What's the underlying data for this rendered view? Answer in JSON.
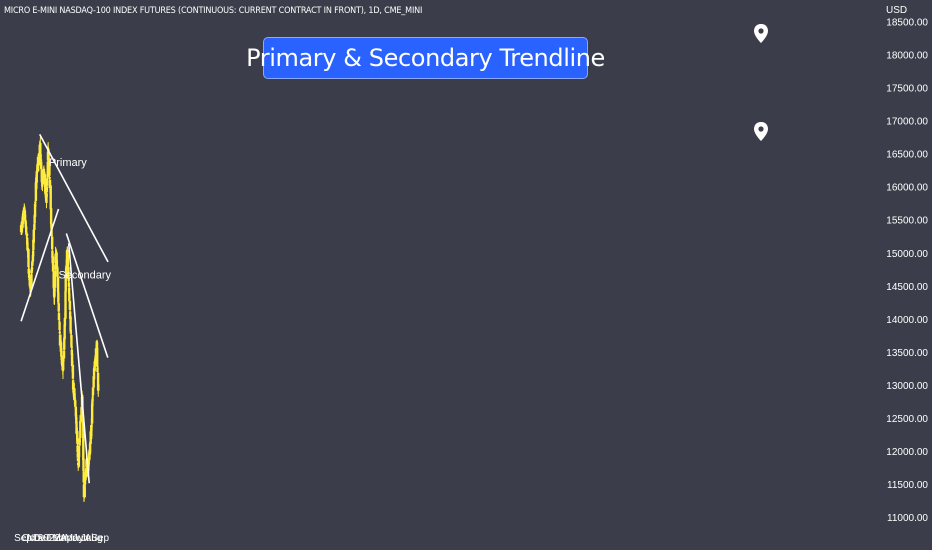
{
  "header": {
    "symbol": "MICRO E-MINI NASDAQ-100 INDEX FUTURES (CONTINUOUS: CURRENT CONTRACT IN FRONT), 1D, CME_MINI",
    "currency": "USD"
  },
  "annotation_title": "Primary & Secondary Trendline",
  "colors": {
    "background": "#3b3e4a",
    "candle": "#ffeb3b",
    "trendline": "#ffffff",
    "label_box": "#2962ff"
  },
  "icons": [
    "location-pin-icon",
    "location-pin-icon"
  ],
  "chart_data": {
    "type": "candlestick",
    "title": "MICRO E-MINI NASDAQ-100 INDEX FUTURES (CONTINUOUS: CURRENT CONTRACT IN FRONT), 1D, CME_MINI",
    "ylabel": "USD",
    "ylim": [
      11000,
      18600
    ],
    "y_ticks": [
      11000,
      11500,
      12000,
      12500,
      13000,
      13500,
      14000,
      14500,
      15000,
      15500,
      16000,
      16500,
      17000,
      17500,
      18000,
      18500
    ],
    "x_ticks": [
      "Sep",
      "Oct",
      "Nov",
      "Dec",
      "2022",
      "Feb",
      "Mar",
      "Apr",
      "May",
      "Jun",
      "Jul",
      "Aug",
      "Sep"
    ],
    "x_range": [
      "2021-08-23",
      "2022-10-10"
    ],
    "close_path": [
      [
        "2021-08-23",
        15350
      ],
      [
        "2021-09-07",
        15650
      ],
      [
        "2021-09-20",
        15200
      ],
      [
        "2021-10-04",
        14450
      ],
      [
        "2021-10-11",
        14650
      ],
      [
        "2021-10-18",
        15000
      ],
      [
        "2021-11-01",
        16000
      ],
      [
        "2021-11-08",
        16300
      ],
      [
        "2021-11-19",
        16600
      ],
      [
        "2021-12-01",
        16050
      ],
      [
        "2021-12-10",
        16250
      ],
      [
        "2021-12-20",
        15750
      ],
      [
        "2021-12-28",
        16550
      ],
      [
        "2022-01-04",
        16250
      ],
      [
        "2022-01-13",
        15400
      ],
      [
        "2022-01-27",
        14300
      ],
      [
        "2022-02-02",
        15000
      ],
      [
        "2022-02-09",
        14800
      ],
      [
        "2022-02-23",
        13650
      ],
      [
        "2022-03-08",
        13250
      ],
      [
        "2022-03-14",
        13500
      ],
      [
        "2022-03-22",
        14600
      ],
      [
        "2022-03-29",
        15050
      ],
      [
        "2022-04-07",
        14400
      ],
      [
        "2022-04-26",
        13000
      ],
      [
        "2022-05-09",
        12550
      ],
      [
        "2022-05-20",
        11800
      ],
      [
        "2022-05-31",
        12500
      ],
      [
        "2022-06-08",
        12800
      ],
      [
        "2022-06-16",
        11300
      ],
      [
        "2022-06-27",
        11800
      ],
      [
        "2022-07-05",
        11700
      ],
      [
        "2022-07-20",
        12300
      ],
      [
        "2022-07-28",
        12900
      ],
      [
        "2022-08-05",
        13300
      ],
      [
        "2022-08-16",
        13650
      ],
      [
        "2022-08-19",
        13150
      ],
      [
        "2022-08-23",
        12950
      ]
    ],
    "trendlines": [
      {
        "name": "Primary",
        "points": [
          [
            "2021-11-19",
            16800
          ],
          [
            "2022-10-08",
            14870
          ]
        ]
      },
      {
        "name": "Secondary",
        "points": [
          [
            "2022-03-25",
            15300
          ],
          [
            "2022-10-07",
            13420
          ]
        ]
      },
      {
        "name": "",
        "points": [
          [
            "2021-08-23",
            13970
          ],
          [
            "2022-02-16",
            15670
          ]
        ]
      },
      {
        "name": "",
        "points": [
          [
            "2022-04-05",
            15150
          ],
          [
            "2022-07-11",
            11520
          ]
        ]
      }
    ],
    "grid": false,
    "legend": "none"
  }
}
